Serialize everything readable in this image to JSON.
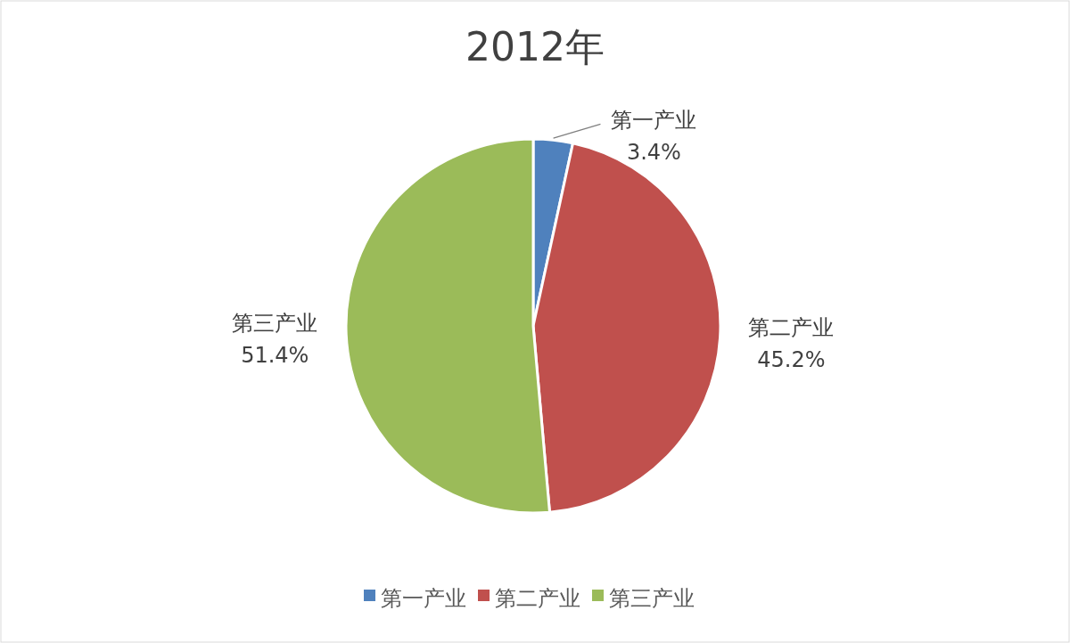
{
  "chart_data": {
    "type": "pie",
    "title": "2012年",
    "categories": [
      "第一产业",
      "第二产业",
      "第三产业"
    ],
    "values": [
      3.4,
      45.2,
      51.4
    ],
    "colors": [
      "#4f81bd",
      "#c0504d",
      "#9bbb59"
    ],
    "value_labels": [
      "3.4%",
      "45.2%",
      "51.4%"
    ],
    "legend": "bottom"
  }
}
